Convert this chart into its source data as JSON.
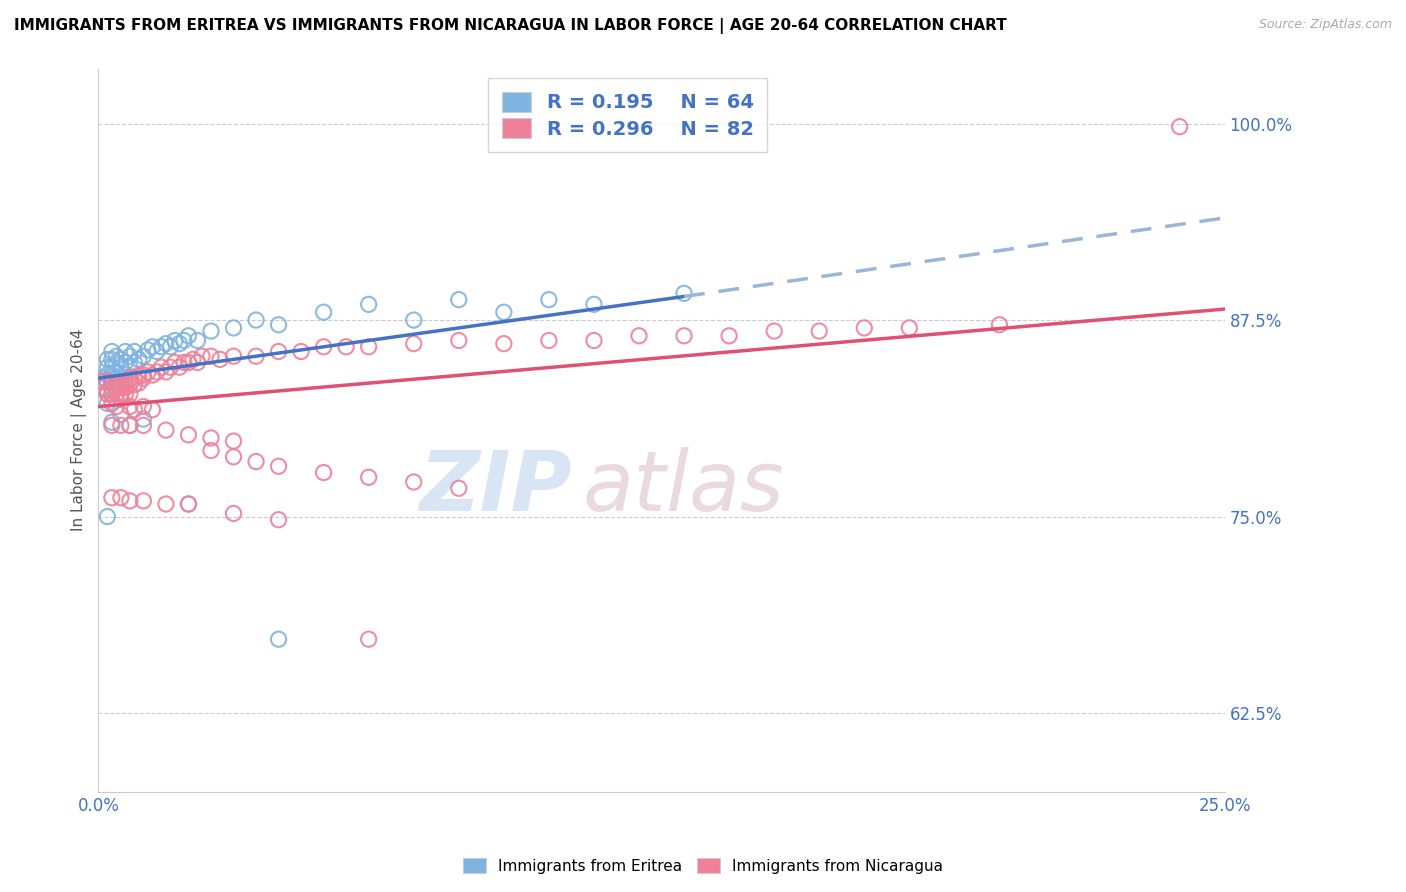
{
  "title": "IMMIGRANTS FROM ERITREA VS IMMIGRANTS FROM NICARAGUA IN LABOR FORCE | AGE 20-64 CORRELATION CHART",
  "source": "Source: ZipAtlas.com",
  "ylabel": "In Labor Force | Age 20-64",
  "xlim": [
    0.0,
    0.25
  ],
  "ylim": [
    0.575,
    1.035
  ],
  "xticks": [
    0.0,
    0.025,
    0.05,
    0.075,
    0.1,
    0.125,
    0.15,
    0.175,
    0.2,
    0.225,
    0.25
  ],
  "yticks": [
    0.625,
    0.75,
    0.875,
    1.0
  ],
  "yticklabels": [
    "62.5%",
    "75.0%",
    "87.5%",
    "100.0%"
  ],
  "eritrea_color": "#7fb3e0",
  "nicaragua_color": "#f08098",
  "legend_R_color": "#4472c4",
  "eritrea_scatter": [
    [
      0.001,
      0.832
    ],
    [
      0.001,
      0.838
    ],
    [
      0.002,
      0.835
    ],
    [
      0.002,
      0.84
    ],
    [
      0.002,
      0.845
    ],
    [
      0.002,
      0.85
    ],
    [
      0.002,
      0.828
    ],
    [
      0.002,
      0.822
    ],
    [
      0.003,
      0.84
    ],
    [
      0.003,
      0.845
    ],
    [
      0.003,
      0.85
    ],
    [
      0.003,
      0.835
    ],
    [
      0.003,
      0.828
    ],
    [
      0.003,
      0.855
    ],
    [
      0.003,
      0.838
    ],
    [
      0.004,
      0.842
    ],
    [
      0.004,
      0.848
    ],
    [
      0.004,
      0.852
    ],
    [
      0.004,
      0.838
    ],
    [
      0.004,
      0.832
    ],
    [
      0.005,
      0.845
    ],
    [
      0.005,
      0.85
    ],
    [
      0.005,
      0.838
    ],
    [
      0.005,
      0.832
    ],
    [
      0.005,
      0.828
    ],
    [
      0.006,
      0.848
    ],
    [
      0.006,
      0.84
    ],
    [
      0.006,
      0.855
    ],
    [
      0.007,
      0.845
    ],
    [
      0.007,
      0.852
    ],
    [
      0.007,
      0.838
    ],
    [
      0.008,
      0.848
    ],
    [
      0.008,
      0.855
    ],
    [
      0.009,
      0.85
    ],
    [
      0.01,
      0.852
    ],
    [
      0.011,
      0.856
    ],
    [
      0.012,
      0.858
    ],
    [
      0.013,
      0.855
    ],
    [
      0.014,
      0.858
    ],
    [
      0.015,
      0.86
    ],
    [
      0.016,
      0.858
    ],
    [
      0.017,
      0.862
    ],
    [
      0.018,
      0.86
    ],
    [
      0.019,
      0.862
    ],
    [
      0.02,
      0.865
    ],
    [
      0.022,
      0.862
    ],
    [
      0.025,
      0.868
    ],
    [
      0.03,
      0.87
    ],
    [
      0.035,
      0.875
    ],
    [
      0.04,
      0.872
    ],
    [
      0.05,
      0.88
    ],
    [
      0.06,
      0.885
    ],
    [
      0.07,
      0.875
    ],
    [
      0.08,
      0.888
    ],
    [
      0.09,
      0.88
    ],
    [
      0.1,
      0.888
    ],
    [
      0.11,
      0.885
    ],
    [
      0.13,
      0.892
    ],
    [
      0.003,
      0.81
    ],
    [
      0.005,
      0.815
    ],
    [
      0.007,
      0.808
    ],
    [
      0.01,
      0.812
    ],
    [
      0.02,
      0.758
    ],
    [
      0.002,
      0.75
    ],
    [
      0.04,
      0.672
    ]
  ],
  "nicaragua_scatter": [
    [
      0.001,
      0.836
    ],
    [
      0.002,
      0.836
    ],
    [
      0.002,
      0.83
    ],
    [
      0.002,
      0.828
    ],
    [
      0.003,
      0.835
    ],
    [
      0.003,
      0.832
    ],
    [
      0.003,
      0.828
    ],
    [
      0.004,
      0.835
    ],
    [
      0.004,
      0.832
    ],
    [
      0.004,
      0.828
    ],
    [
      0.005,
      0.835
    ],
    [
      0.005,
      0.832
    ],
    [
      0.005,
      0.828
    ],
    [
      0.006,
      0.835
    ],
    [
      0.006,
      0.832
    ],
    [
      0.006,
      0.828
    ],
    [
      0.007,
      0.838
    ],
    [
      0.007,
      0.834
    ],
    [
      0.007,
      0.828
    ],
    [
      0.008,
      0.838
    ],
    [
      0.008,
      0.834
    ],
    [
      0.009,
      0.84
    ],
    [
      0.009,
      0.835
    ],
    [
      0.01,
      0.84
    ],
    [
      0.01,
      0.838
    ],
    [
      0.011,
      0.842
    ],
    [
      0.012,
      0.84
    ],
    [
      0.013,
      0.842
    ],
    [
      0.014,
      0.845
    ],
    [
      0.015,
      0.842
    ],
    [
      0.016,
      0.845
    ],
    [
      0.017,
      0.848
    ],
    [
      0.018,
      0.845
    ],
    [
      0.019,
      0.848
    ],
    [
      0.02,
      0.848
    ],
    [
      0.021,
      0.85
    ],
    [
      0.022,
      0.848
    ],
    [
      0.023,
      0.852
    ],
    [
      0.025,
      0.852
    ],
    [
      0.027,
      0.85
    ],
    [
      0.03,
      0.852
    ],
    [
      0.035,
      0.852
    ],
    [
      0.04,
      0.855
    ],
    [
      0.045,
      0.855
    ],
    [
      0.05,
      0.858
    ],
    [
      0.055,
      0.858
    ],
    [
      0.06,
      0.858
    ],
    [
      0.07,
      0.86
    ],
    [
      0.08,
      0.862
    ],
    [
      0.09,
      0.86
    ],
    [
      0.1,
      0.862
    ],
    [
      0.11,
      0.862
    ],
    [
      0.12,
      0.865
    ],
    [
      0.13,
      0.865
    ],
    [
      0.14,
      0.865
    ],
    [
      0.15,
      0.868
    ],
    [
      0.16,
      0.868
    ],
    [
      0.17,
      0.87
    ],
    [
      0.18,
      0.87
    ],
    [
      0.2,
      0.872
    ],
    [
      0.24,
      0.998
    ],
    [
      0.003,
      0.822
    ],
    [
      0.004,
      0.82
    ],
    [
      0.005,
      0.825
    ],
    [
      0.007,
      0.82
    ],
    [
      0.008,
      0.818
    ],
    [
      0.01,
      0.82
    ],
    [
      0.012,
      0.818
    ],
    [
      0.003,
      0.808
    ],
    [
      0.005,
      0.808
    ],
    [
      0.007,
      0.808
    ],
    [
      0.01,
      0.808
    ],
    [
      0.015,
      0.805
    ],
    [
      0.02,
      0.802
    ],
    [
      0.025,
      0.8
    ],
    [
      0.03,
      0.798
    ],
    [
      0.025,
      0.792
    ],
    [
      0.03,
      0.788
    ],
    [
      0.035,
      0.785
    ],
    [
      0.04,
      0.782
    ],
    [
      0.05,
      0.778
    ],
    [
      0.06,
      0.775
    ],
    [
      0.07,
      0.772
    ],
    [
      0.08,
      0.768
    ],
    [
      0.003,
      0.762
    ],
    [
      0.005,
      0.762
    ],
    [
      0.007,
      0.76
    ],
    [
      0.01,
      0.76
    ],
    [
      0.015,
      0.758
    ],
    [
      0.02,
      0.758
    ],
    [
      0.03,
      0.752
    ],
    [
      0.04,
      0.748
    ],
    [
      0.06,
      0.672
    ]
  ],
  "eritrea_trendline_solid": [
    [
      0.0,
      0.838
    ],
    [
      0.13,
      0.89
    ]
  ],
  "eritrea_trendline_dashed": [
    [
      0.13,
      0.89
    ],
    [
      0.25,
      0.94
    ]
  ],
  "nicaragua_trendline": [
    [
      0.0,
      0.82
    ],
    [
      0.25,
      0.882
    ]
  ]
}
